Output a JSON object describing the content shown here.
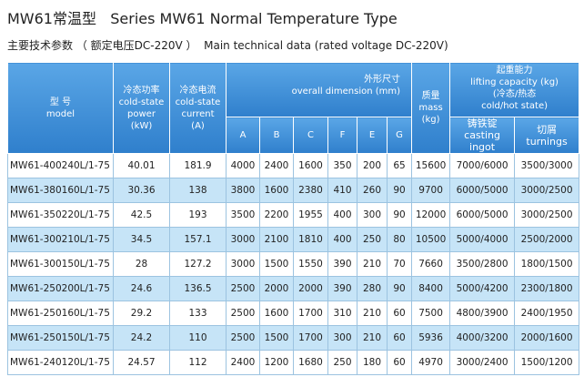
{
  "title": "MW61常温型   Series MW61 Normal Temperature Type",
  "subtitle": "主要技术参数 （ 额定电压DC-220V ）  Main technical data (rated voltage DC-220V)",
  "table": {
    "header": {
      "top": [
        {
          "lines": [
            "型 号",
            "model"
          ]
        },
        {
          "lines": [
            "冷态功率",
            "cold-state",
            "power",
            "(kW)"
          ]
        },
        {
          "lines": [
            "冷态电流",
            "cold-state",
            "current",
            "(A)"
          ]
        },
        {
          "lines": [
            "外形尺寸",
            "overall dimension (mm)"
          ]
        },
        {
          "lines": [
            "质量",
            "mass",
            "(kg)"
          ]
        },
        {
          "lines": [
            "起重能力",
            "lifting capacity  (kg)",
            "(冷态/热态",
            "cold/hot state)"
          ]
        }
      ],
      "sub": [
        {
          "lines": [
            "A"
          ]
        },
        {
          "lines": [
            "B"
          ]
        },
        {
          "lines": [
            "C"
          ]
        },
        {
          "lines": [
            "F"
          ]
        },
        {
          "lines": [
            "E"
          ]
        },
        {
          "lines": [
            "G"
          ]
        },
        {
          "lines": [
            "铸铁锭",
            "casting ingot"
          ]
        },
        {
          "lines": [
            "切屑",
            "turnings"
          ]
        }
      ]
    },
    "rows": [
      [
        "MW61-400240L/1-75",
        "40.01",
        "181.9",
        "4000",
        "2400",
        "1600",
        "350",
        "200",
        "65",
        "15600",
        "7000/6000",
        "3500/3000"
      ],
      [
        "MW61-380160L/1-75",
        "30.36",
        "138",
        "3800",
        "1600",
        "2380",
        "410",
        "260",
        "90",
        "9700",
        "6000/5000",
        "3000/2500"
      ],
      [
        "MW61-350220L/1-75",
        "42.5",
        "193",
        "3500",
        "2200",
        "1955",
        "400",
        "300",
        "90",
        "12000",
        "6000/5000",
        "3000/2500"
      ],
      [
        "MW61-300210L/1-75",
        "34.5",
        "157.1",
        "3000",
        "2100",
        "1810",
        "400",
        "250",
        "80",
        "10500",
        "5000/4000",
        "2500/2000"
      ],
      [
        "MW61-300150L/1-75",
        "28",
        "127.2",
        "3000",
        "1500",
        "1550",
        "390",
        "210",
        "70",
        "7660",
        "3500/2800",
        "1800/1500"
      ],
      [
        "MW61-250200L/1-75",
        "24.6",
        "136.5",
        "2500",
        "2000",
        "2000",
        "390",
        "280",
        "90",
        "8400",
        "5000/4200",
        "2300/1800"
      ],
      [
        "MW61-250160L/1-75",
        "29.2",
        "133",
        "2500",
        "1600",
        "1700",
        "310",
        "210",
        "60",
        "7500",
        "4800/3900",
        "2400/1950"
      ],
      [
        "MW61-250150L/1-75",
        "24.2",
        "110",
        "2500",
        "1500",
        "1700",
        "300",
        "210",
        "60",
        "5936",
        "4000/3200",
        "2000/1600"
      ],
      [
        "MW61-240120L/1-75",
        "24.57",
        "112",
        "2400",
        "1200",
        "1680",
        "250",
        "180",
        "60",
        "4970",
        "3000/2400",
        "1500/1200"
      ]
    ]
  }
}
